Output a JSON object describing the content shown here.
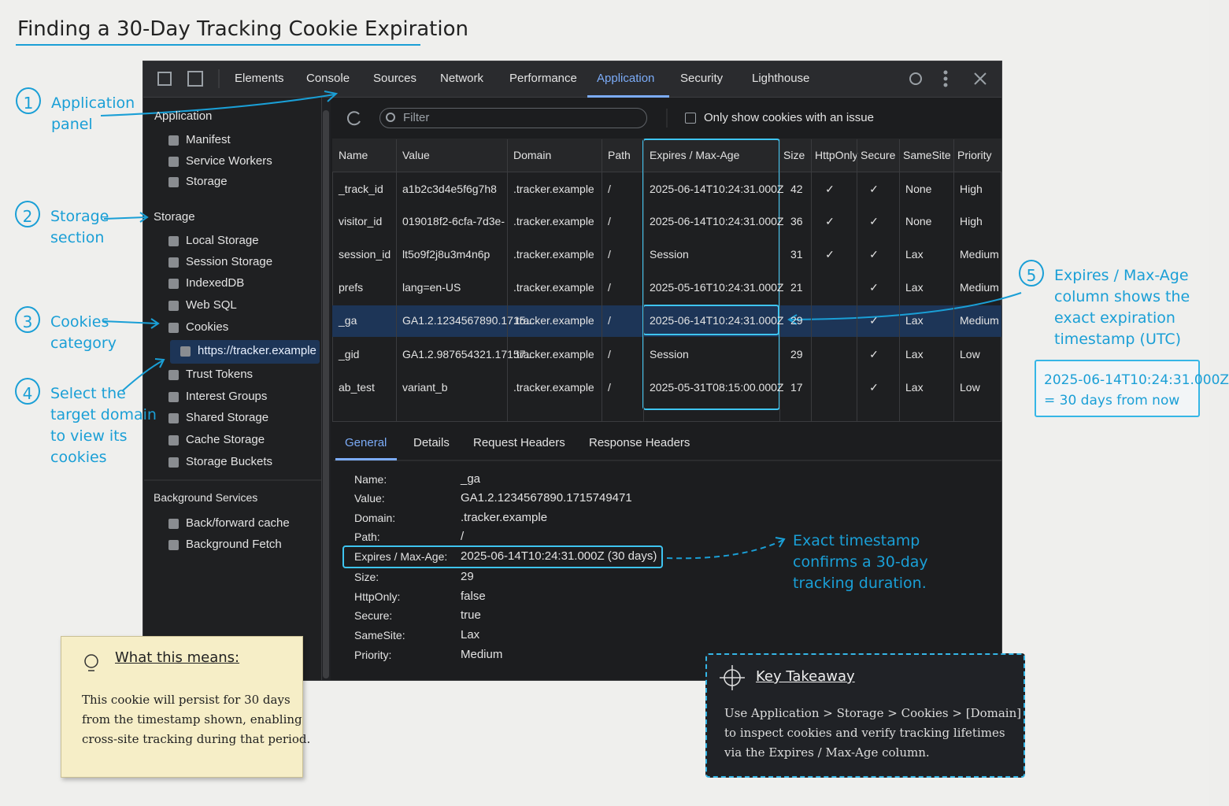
{
  "title": "Finding a 30-Day Tracking Cookie Expiration",
  "annotations": [
    {
      "number": 1,
      "lines": [
        "Application",
        "panel"
      ]
    },
    {
      "number": 2,
      "lines": [
        "Storage",
        "section"
      ]
    },
    {
      "number": 3,
      "lines": [
        "Cookies",
        "category"
      ]
    },
    {
      "number": 4,
      "lines": [
        "Select the",
        "target domain",
        "to view its",
        "cookies"
      ]
    },
    {
      "number": 5,
      "lines": [
        "Expires / Max-Age",
        "column shows the",
        "exact expiration",
        "timestamp (UTC)"
      ]
    }
  ],
  "callout": [
    "2025-06-14T10:24:31.000Z",
    "= 30 days from now"
  ],
  "detail_note": [
    "Exact timestamp",
    "confirms a 30-day",
    "tracking duration."
  ],
  "devtools": {
    "tabs": [
      "Elements",
      "Console",
      "Sources",
      "Network",
      "Performance",
      "Application",
      "Security",
      "Lighthouse"
    ],
    "sidebar": [
      {
        "heading": "Application",
        "items": [
          "Manifest",
          "Service Workers",
          "Storage"
        ]
      },
      {
        "heading": "Storage",
        "items": [
          "Local Storage",
          "Session Storage",
          "IndexedDB",
          "Web SQL",
          "Cookies",
          "https://tracker.example",
          "Trust Tokens",
          "Interest Groups",
          "Shared Storage",
          "Cache Storage",
          "Storage Buckets"
        ]
      },
      {
        "heading": "Background Services",
        "items": [
          "Back/forward cache",
          "Background Fetch"
        ]
      }
    ],
    "filter_placeholder": "Filter",
    "checkbox_label": "Only show cookies with an issue",
    "table": {
      "columns": [
        "Name",
        "Value",
        "Domain",
        "Path",
        "Expires / Max-Age",
        "Size",
        "HttpOnly",
        "Secure",
        "SameSite",
        "Priority"
      ],
      "rows": [
        [
          "_track_id",
          "a1b2c3d4e5f6g7h8",
          ".tracker.example",
          "/",
          "2025-06-14T10:24:31.000Z",
          42,
          "✓",
          "✓",
          "None",
          "High"
        ],
        [
          "visitor_id",
          "019018f2-6cfa-7d3e-",
          ".tracker.example",
          "/",
          "2025-06-14T10:24:31.000Z",
          36,
          "✓",
          "✓",
          "None",
          "High"
        ],
        [
          "session_id",
          "lt5o9f2j8u3m4n6p",
          ".tracker.example",
          "/",
          "Session",
          31,
          "✓",
          "✓",
          "Lax",
          "Medium"
        ],
        [
          "prefs",
          "lang=en-US",
          ".tracker.example",
          "/",
          "2025-05-16T10:24:31.000Z",
          21,
          null,
          "✓",
          "Lax",
          "Medium"
        ],
        [
          "_ga",
          "GA1.2.1234567890.1715...",
          ".tracker.example",
          "/",
          "2025-06-14T10:24:31.000Z",
          29,
          null,
          "✓",
          "Lax",
          "Medium"
        ],
        [
          "_gid",
          "GA1.2.987654321.17157...",
          ".tracker.example",
          "/",
          "Session",
          29,
          null,
          "✓",
          "Lax",
          "Low"
        ],
        [
          "ab_test",
          "variant_b",
          ".tracker.example",
          "/",
          "2025-05-31T08:15:00.000Z",
          17,
          null,
          "✓",
          "Lax",
          "Low"
        ]
      ]
    },
    "detail_tabs": [
      "General",
      "Details",
      "Request Headers",
      "Response Headers"
    ],
    "details": [
      [
        "Name:",
        "_ga"
      ],
      [
        "Value:",
        "GA1.2.1234567890.1715749471"
      ],
      [
        "Domain:",
        ".tracker.example"
      ],
      [
        "Path:",
        "/"
      ],
      [
        "Expires / Max-Age:",
        "2025-06-14T10:24:31.000Z (30 days)"
      ],
      [
        "Size:",
        "29"
      ],
      [
        "HttpOnly:",
        "false"
      ],
      [
        "Secure:",
        "true"
      ],
      [
        "SameSite:",
        "Lax"
      ],
      [
        "Priority:",
        "Medium"
      ]
    ]
  },
  "note": {
    "title": "What this means:",
    "lines": [
      "This cookie will persist for 30 days",
      "from the timestamp shown, enabling",
      "cross-site tracking during that period."
    ]
  },
  "takeaway": {
    "title": "Key Takeaway",
    "lines": [
      "Use Application > Storage > Cookies > [Domain]",
      "to inspect cookies and verify tracking lifetimes",
      "via the Expires / Max-Age column."
    ]
  }
}
